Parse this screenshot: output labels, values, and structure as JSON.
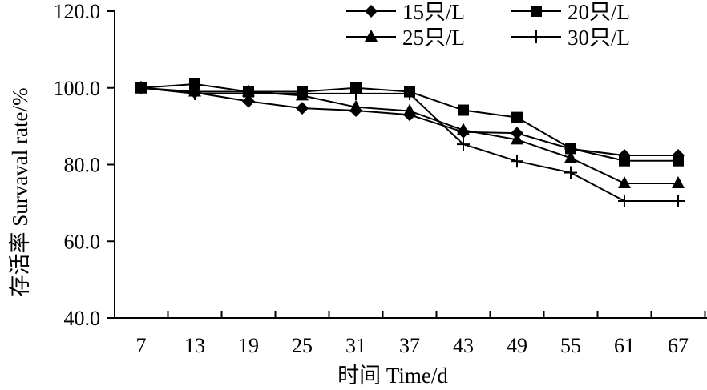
{
  "chart_data": {
    "type": "line",
    "title": "",
    "xlabel": "时间 Time/d",
    "ylabel": "存活率 Survaval rate/%",
    "categories": [
      "7",
      "13",
      "19",
      "25",
      "31",
      "37",
      "43",
      "49",
      "55",
      "61",
      "67"
    ],
    "ylim": [
      40,
      120
    ],
    "yticks": [
      "40.0",
      "60.0",
      "80.0",
      "100.0",
      "120.0"
    ],
    "grid": false,
    "legend_position": "top-right",
    "series": [
      {
        "name": "15只/L",
        "marker": "diamond",
        "values": [
          100,
          98.8,
          96.5,
          94.7,
          94.1,
          93.0,
          88.5,
          88.2,
          84.1,
          82.4,
          82.4
        ]
      },
      {
        "name": "20只/L",
        "marker": "square",
        "values": [
          100,
          101.0,
          99.0,
          99.0,
          100.0,
          99.0,
          94.2,
          92.3,
          84.2,
          81.0,
          81.0
        ]
      },
      {
        "name": "25只/L",
        "marker": "triangle",
        "values": [
          100,
          99.0,
          99.0,
          98.0,
          95.0,
          94.0,
          89.0,
          86.5,
          81.7,
          75.1,
          75.1
        ]
      },
      {
        "name": "30只/L",
        "marker": "plus",
        "values": [
          100,
          98.5,
          98.5,
          98.5,
          98.5,
          98.5,
          85.3,
          80.9,
          77.9,
          70.5,
          70.5
        ]
      }
    ]
  }
}
